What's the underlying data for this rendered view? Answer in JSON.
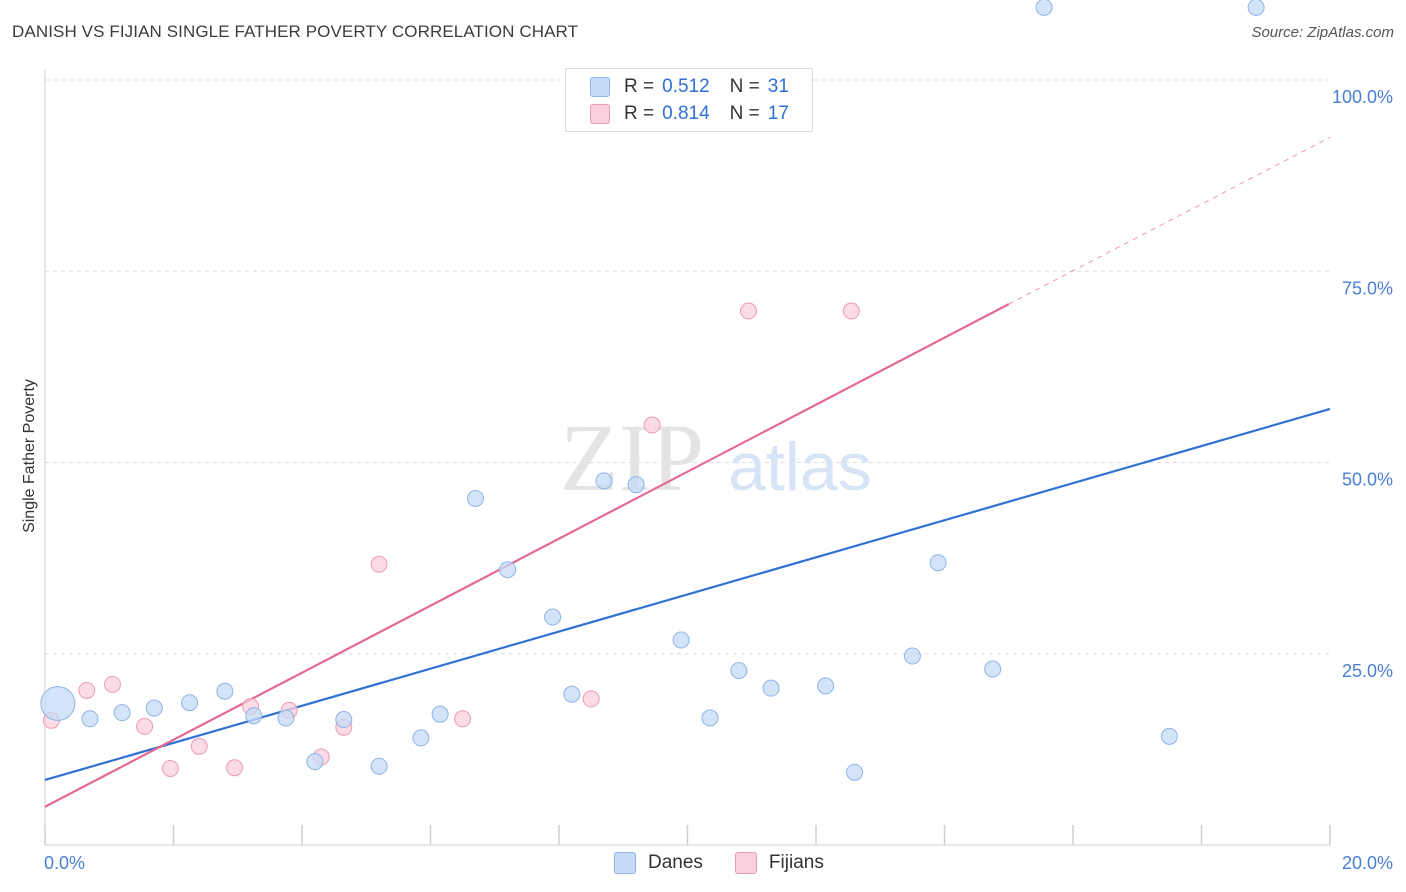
{
  "header": {
    "title": "DANISH VS FIJIAN SINGLE FATHER POVERTY CORRELATION CHART",
    "source": "Source: ZipAtlas.com"
  },
  "watermark": {
    "zip": "ZIP",
    "atlas": "atlas"
  },
  "legend": {
    "r_label": "R =",
    "n_label": "N =",
    "rows": [
      {
        "name": "Danes",
        "r": "0.512",
        "n": "31",
        "color": "#a9c8f0"
      },
      {
        "name": "Fijians",
        "r": "0.814",
        "n": "17",
        "color": "#f6b8cb"
      }
    ]
  },
  "colors": {
    "danes_fill": "#c5dbf6",
    "danes_stroke": "#8fb4e6",
    "danes_line": "#2f72d4",
    "fijians_fill": "#f9cfdc",
    "fijians_stroke": "#ee9ab5",
    "fijians_line": "#e46a93",
    "grid": "#dcdcdc",
    "tick_text": "#4a7fd4"
  },
  "chart_data": {
    "type": "scatter",
    "title": "DANISH VS FIJIAN SINGLE FATHER POVERTY CORRELATION CHART",
    "xlabel": "",
    "ylabel": "Single Father Poverty",
    "xlim": [
      0,
      20
    ],
    "ylim": [
      -3,
      103
    ],
    "x_tick_labels": [
      {
        "value": 0,
        "label": "0.0%"
      },
      {
        "value": 20,
        "label": "20.0%"
      }
    ],
    "y_tick_labels": [
      {
        "value": 100,
        "label": "100.0%"
      },
      {
        "value": 75,
        "label": "75.0%"
      },
      {
        "value": 50,
        "label": "50.0%"
      },
      {
        "value": 25,
        "label": "25.0%"
      }
    ],
    "gridlines_y": [
      25,
      50,
      75,
      100
    ],
    "series": [
      {
        "name": "Danes",
        "r": 0.512,
        "n": 31,
        "points": [
          {
            "x": 0.2,
            "y": 18.5,
            "size": "large"
          },
          {
            "x": 0.7,
            "y": 16.5
          },
          {
            "x": 1.2,
            "y": 17.3
          },
          {
            "x": 1.7,
            "y": 17.9
          },
          {
            "x": 2.25,
            "y": 18.6
          },
          {
            "x": 2.8,
            "y": 20.1
          },
          {
            "x": 3.25,
            "y": 16.9
          },
          {
            "x": 3.75,
            "y": 16.6
          },
          {
            "x": 4.2,
            "y": 10.9
          },
          {
            "x": 4.65,
            "y": 16.4
          },
          {
            "x": 5.2,
            "y": 10.3
          },
          {
            "x": 5.85,
            "y": 14.0
          },
          {
            "x": 6.15,
            "y": 17.1
          },
          {
            "x": 6.7,
            "y": 45.3
          },
          {
            "x": 7.2,
            "y": 36.0
          },
          {
            "x": 7.9,
            "y": 29.8
          },
          {
            "x": 8.2,
            "y": 19.7
          },
          {
            "x": 8.7,
            "y": 47.6
          },
          {
            "x": 9.2,
            "y": 47.1
          },
          {
            "x": 9.9,
            "y": 26.8
          },
          {
            "x": 10.35,
            "y": 16.6
          },
          {
            "x": 10.8,
            "y": 22.8
          },
          {
            "x": 11.3,
            "y": 20.5
          },
          {
            "x": 12.15,
            "y": 20.8
          },
          {
            "x": 12.6,
            "y": 9.5
          },
          {
            "x": 13.5,
            "y": 24.7
          },
          {
            "x": 13.9,
            "y": 36.9
          },
          {
            "x": 14.75,
            "y": 23.0
          },
          {
            "x": 15.55,
            "y": 109.5
          },
          {
            "x": 17.5,
            "y": 14.2
          },
          {
            "x": 18.85,
            "y": 109.5
          }
        ],
        "trendline": {
          "x": [
            0,
            20
          ],
          "y": [
            8.5,
            57
          ]
        }
      },
      {
        "name": "Fijians",
        "r": 0.814,
        "n": 17,
        "points": [
          {
            "x": 0.1,
            "y": 16.3
          },
          {
            "x": 0.65,
            "y": 20.2
          },
          {
            "x": 1.05,
            "y": 21.0
          },
          {
            "x": 1.55,
            "y": 15.5
          },
          {
            "x": 1.95,
            "y": 10.0
          },
          {
            "x": 2.4,
            "y": 12.9
          },
          {
            "x": 2.95,
            "y": 10.1
          },
          {
            "x": 3.2,
            "y": 18.1
          },
          {
            "x": 3.8,
            "y": 17.6
          },
          {
            "x": 4.3,
            "y": 11.5
          },
          {
            "x": 4.65,
            "y": 15.4
          },
          {
            "x": 5.2,
            "y": 36.7
          },
          {
            "x": 6.5,
            "y": 16.5
          },
          {
            "x": 8.5,
            "y": 19.1
          },
          {
            "x": 9.45,
            "y": 54.9
          },
          {
            "x": 10.95,
            "y": 69.8
          },
          {
            "x": 12.55,
            "y": 69.8
          }
        ],
        "trendline": {
          "x": [
            0,
            15
          ],
          "y": [
            5,
            70.7
          ]
        },
        "trendline_extension": {
          "x": [
            15,
            20
          ],
          "y": [
            70.7,
            92.5
          ]
        }
      }
    ]
  }
}
